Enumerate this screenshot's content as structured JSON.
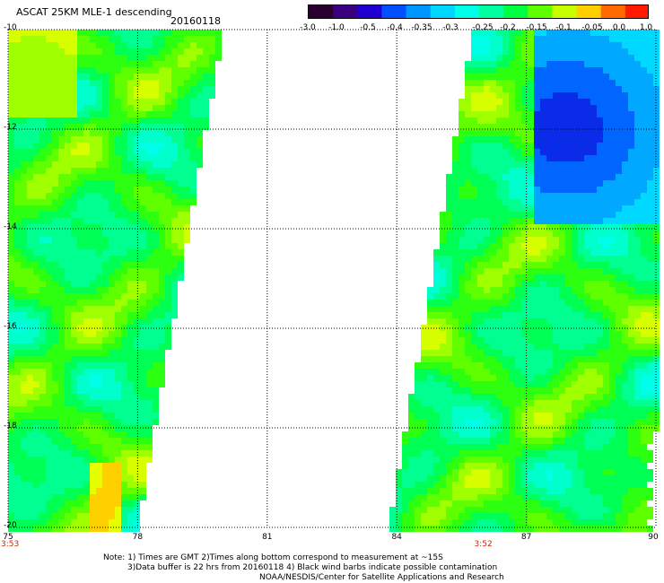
{
  "title": "ASCAT 25KM MLE-1 descending",
  "date": "20160118",
  "colorbar": {
    "ticks": [
      "-3.0",
      "-1.0",
      "-0.5",
      "-0.4",
      "-0.35",
      "-0.3",
      "-0.25",
      "-0.2",
      "-0.15",
      "-0.1",
      "-0.05",
      "0.0",
      "1.0"
    ],
    "colors": [
      "#2a0030",
      "#3a0080",
      "#1f00d0",
      "#0050ff",
      "#0095ff",
      "#00d6ff",
      "#00ffe8",
      "#00ffa0",
      "#00ff40",
      "#60ff00",
      "#c8ff00",
      "#ffd000",
      "#ff6a00",
      "#ff1a00"
    ]
  },
  "map": {
    "lon_ticks": [
      "75",
      "78",
      "81",
      "84",
      "87",
      "90"
    ],
    "lat_ticks": [
      "-10",
      "-12",
      "-14",
      "-16",
      "-18",
      "-20"
    ],
    "lon_range": [
      75,
      90
    ],
    "lat_range": [
      -20,
      -10
    ],
    "times": [
      {
        "label": "3:53",
        "lon": 75
      },
      {
        "label": "3:52",
        "lon": 86
      }
    ],
    "grid": true
  },
  "notes": [
    "Note: 1) Times are GMT 2)Times along bottom correspond to measurement at ~15S",
    "3)Data buffer is 22 hrs from 20160118 4) Black wind barbs indicate possible contamination",
    "NOAA/NESDIS/Center for Satellite Applications and Research"
  ]
}
